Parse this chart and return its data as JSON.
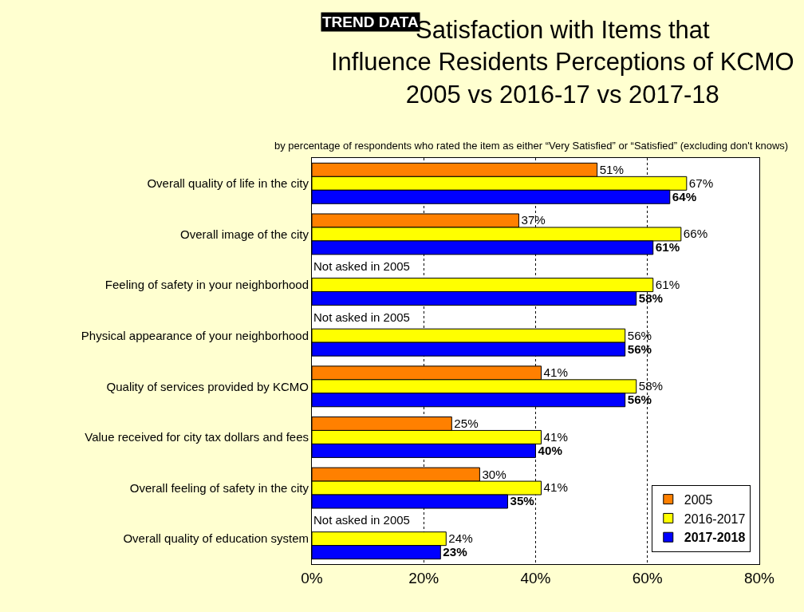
{
  "chart_data": {
    "type": "bar",
    "orientation": "horizontal",
    "title": "Satisfaction with Items that\nInfluence Residents Perceptions of KCMO\n2005 vs 2016-17 vs 2017-18",
    "subtitle": "by percentage of respondents who rated the item as either “Very Satisfied” or “Satisfied” (excluding don't knows)",
    "annotations": [
      "TREND DATA"
    ],
    "categories": [
      "Overall quality of life in the city",
      "Overall image of the city",
      "Feeling of safety in your neighborhood",
      "Physical appearance of your neighborhood",
      "Quality of services provided by KCMO",
      "Value received for city tax dollars and fees",
      "Overall feeling of safety in the city",
      "Overall quality of education system"
    ],
    "series": [
      {
        "name": "2005",
        "color": "#ff8000",
        "values": [
          51,
          37,
          null,
          null,
          41,
          25,
          30,
          null
        ],
        "value_labels": [
          "51%",
          "37%",
          "Not asked in 2005",
          "Not asked in 2005",
          "41%",
          "25%",
          "30%",
          "Not asked in 2005"
        ]
      },
      {
        "name": "2016-2017",
        "color": "#ffff00",
        "values": [
          67,
          66,
          61,
          56,
          58,
          41,
          41,
          24
        ],
        "value_labels": [
          "67%",
          "66%",
          "61%",
          "56%",
          "58%",
          "41%",
          "41%",
          "24%"
        ]
      },
      {
        "name": "2017-2018",
        "color": "#0000ff",
        "values": [
          64,
          61,
          58,
          56,
          56,
          40,
          35,
          23
        ],
        "value_labels": [
          "64%",
          "61%",
          "58%",
          "56%",
          "56%",
          "40%",
          "35%",
          "23%"
        ]
      }
    ],
    "xlim": [
      0,
      80
    ],
    "xticks": [
      {
        "value": 0,
        "label": "0%"
      },
      {
        "value": 20,
        "label": "20%"
      },
      {
        "value": 40,
        "label": "40%"
      },
      {
        "value": 60,
        "label": "60%"
      },
      {
        "value": 80,
        "label": "80%"
      }
    ],
    "grid": "x",
    "legend": "bottom right"
  }
}
